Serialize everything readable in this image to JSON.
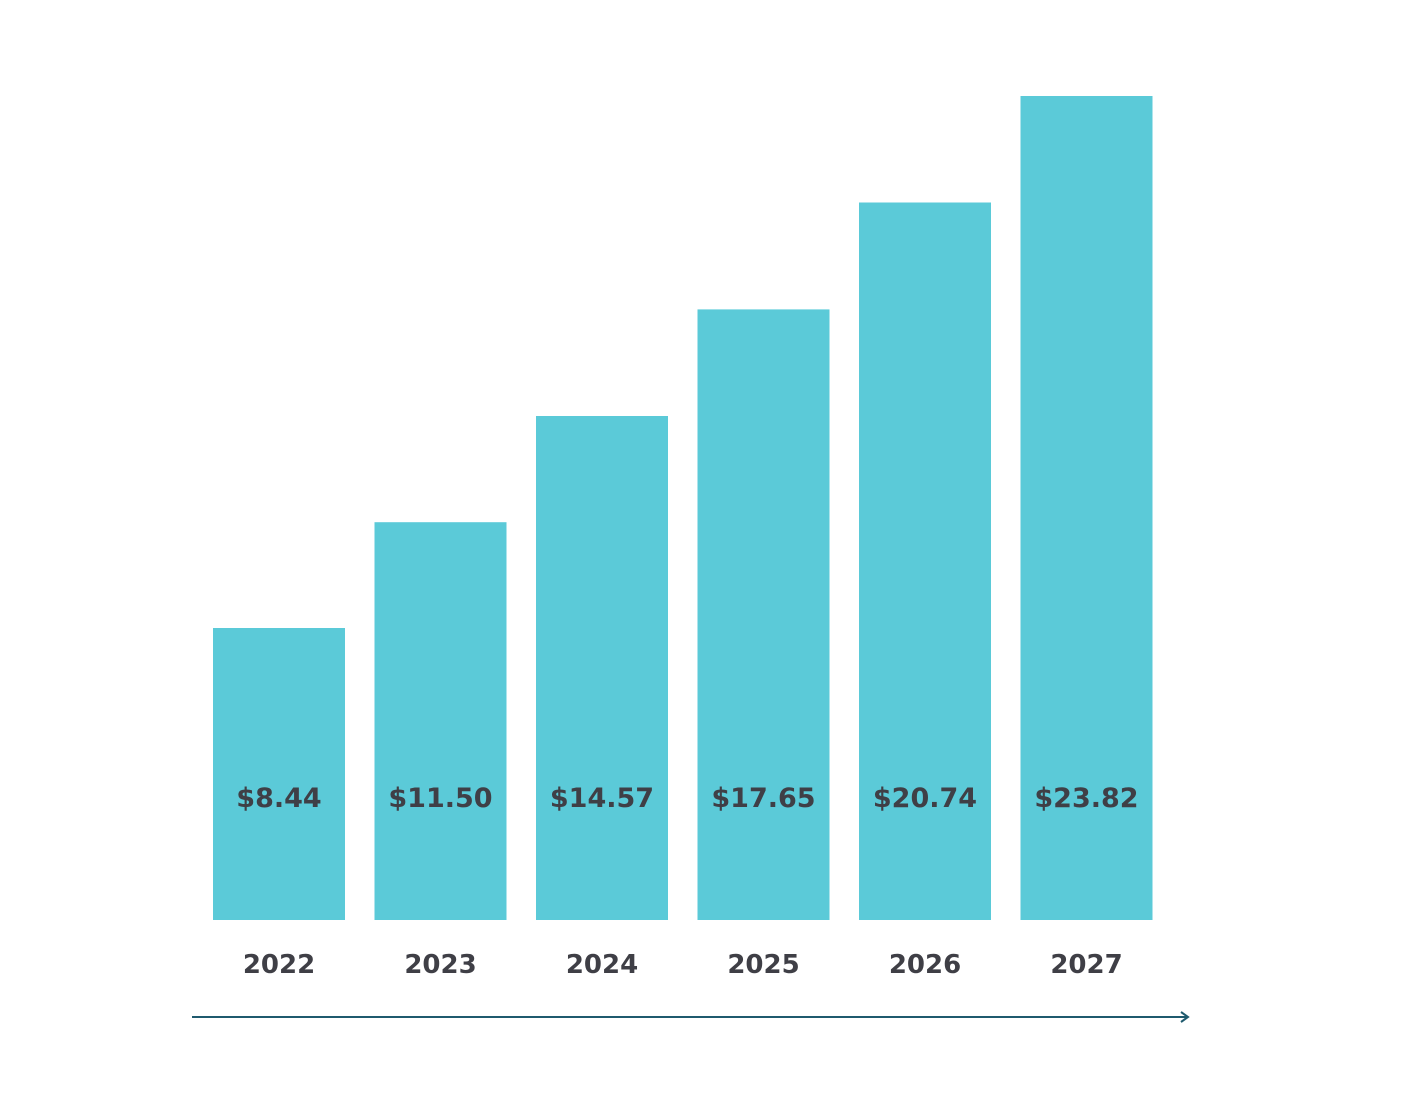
{
  "chart_data": {
    "type": "bar",
    "title": "",
    "xlabel": "",
    "ylabel": "",
    "categories": [
      "2022",
      "2023",
      "2024",
      "2025",
      "2026",
      "2027"
    ],
    "values": [
      8.44,
      11.5,
      14.57,
      17.65,
      20.74,
      23.82
    ],
    "data_labels": [
      "$8.44",
      "$11.50",
      "$14.57",
      "$17.65",
      "$20.74",
      "$23.82"
    ],
    "ylim": [
      0,
      23.82
    ],
    "grid": false,
    "legend": "none",
    "colors": {
      "bar": "#5bcad8",
      "label": "#3f3f46",
      "axis_arrow": "#1f5a6e",
      "background": "#ffffff"
    }
  }
}
